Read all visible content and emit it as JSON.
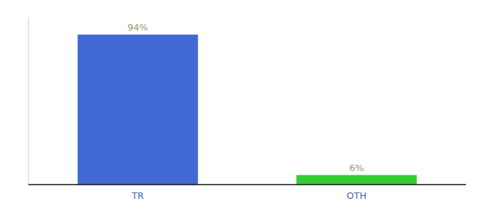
{
  "chart_data": {
    "type": "bar",
    "categories": [
      "TR",
      "OTH"
    ],
    "values": [
      94,
      6
    ],
    "value_labels": [
      "94%",
      "6%"
    ],
    "colors": [
      "#4169d4",
      "#33cc33"
    ],
    "ylim": [
      0,
      105
    ],
    "data_labels": true,
    "tick_labels": "x",
    "grid": false
  }
}
